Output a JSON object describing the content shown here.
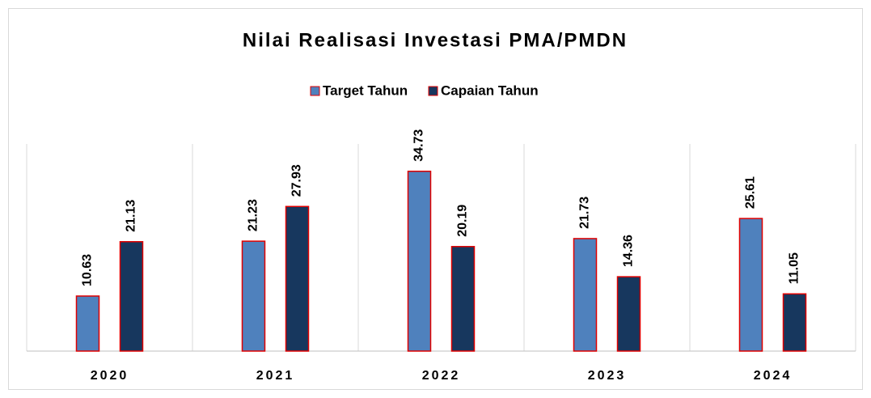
{
  "chart_data": {
    "type": "bar",
    "title": "Nilai Realisasi Investasi PMA/PMDN",
    "categories": [
      "2020",
      "2021",
      "2022",
      "2023",
      "2024"
    ],
    "series": [
      {
        "name": "Target Tahun",
        "color": "#4f81bd",
        "values": [
          10.63,
          21.23,
          34.73,
          21.73,
          25.61
        ]
      },
      {
        "name": "Capaian Tahun",
        "color": "#17375e",
        "values": [
          21.13,
          27.93,
          20.19,
          14.36,
          11.05
        ]
      }
    ],
    "ylim": [
      0,
      40
    ],
    "legend": "top"
  }
}
